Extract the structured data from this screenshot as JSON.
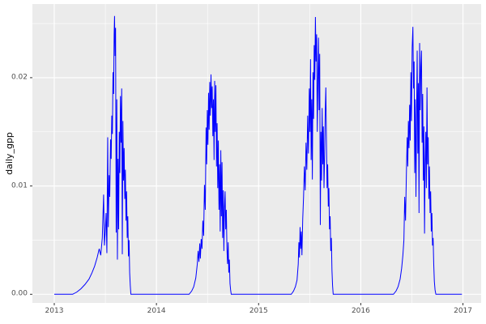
{
  "figure": {
    "y_axis_title": "daily_gpp"
  },
  "colors": {
    "line": "#0000FF",
    "panel_bg": "#EBEBEB",
    "grid_major": "#FFFFFF",
    "grid_minor": "#FFFFFF",
    "tick_text": "#4D4D4D",
    "axis_title": "#000000",
    "tick_mark": "#333333",
    "figure_bg": "#FFFFFF"
  },
  "chart_data": {
    "type": "line",
    "title": "",
    "xlabel": "",
    "ylabel": "daily_gpp",
    "legend": "none",
    "grid": "major+minor, white on grey panel (ggplot2 style)",
    "xlim": [
      2012.786,
      2017.178
    ],
    "ylim": [
      -0.0008,
      0.0268
    ],
    "x_ticks": [
      {
        "value": 2013,
        "label": "2013"
      },
      {
        "value": 2014,
        "label": "2014"
      },
      {
        "value": 2015,
        "label": "2015"
      },
      {
        "value": 2016,
        "label": "2016"
      },
      {
        "value": 2017,
        "label": "2017"
      }
    ],
    "y_ticks": [
      {
        "value": 0.0,
        "label": "0.00"
      },
      {
        "value": 0.01,
        "label": "0.01"
      },
      {
        "value": 0.02,
        "label": "0.02"
      }
    ],
    "x_minor_ticks": [
      2013.5,
      2014.5,
      2015.5,
      2016.5
    ],
    "y_minor_ticks": [
      0.005,
      0.015,
      0.025
    ],
    "series": [
      {
        "name": "daily_gpp",
        "color": "#0000FF",
        "points": [
          [
            2013.0,
            0
          ],
          [
            2013.18,
            0
          ],
          [
            2013.22,
            0.0002
          ],
          [
            2013.26,
            0.0005
          ],
          [
            2013.3,
            0.0009
          ],
          [
            2013.34,
            0.0014
          ],
          [
            2013.37,
            0.002
          ],
          [
            2013.395,
            0.0026
          ],
          [
            2013.42,
            0.0034
          ],
          [
            2013.44,
            0.0042
          ],
          [
            2013.455,
            0.0036
          ],
          [
            2013.47,
            0.0052
          ],
          [
            2013.483,
            0.0092
          ],
          [
            2013.491,
            0.0045
          ],
          [
            2013.499,
            0.0058
          ],
          [
            2013.507,
            0.0075
          ],
          [
            2013.515,
            0.0038
          ],
          [
            2013.523,
            0.0145
          ],
          [
            2013.529,
            0.0062
          ],
          [
            2013.537,
            0.011
          ],
          [
            2013.543,
            0.009
          ],
          [
            2013.551,
            0.0143
          ],
          [
            2013.557,
            0.0125
          ],
          [
            2013.563,
            0.0165
          ],
          [
            2013.569,
            0.0148
          ],
          [
            2013.575,
            0.0205
          ],
          [
            2013.581,
            0.0185
          ],
          [
            2013.586,
            0.024
          ],
          [
            2013.59,
            0.0257
          ],
          [
            2013.595,
            0.022
          ],
          [
            2013.6,
            0.0246
          ],
          [
            2013.606,
            0.0057
          ],
          [
            2013.612,
            0.018
          ],
          [
            2013.618,
            0.0032
          ],
          [
            2013.624,
            0.0125
          ],
          [
            2013.63,
            0.006
          ],
          [
            2013.636,
            0.015
          ],
          [
            2013.642,
            0.0112
          ],
          [
            2013.648,
            0.0183
          ],
          [
            2013.654,
            0.014
          ],
          [
            2013.66,
            0.019
          ],
          [
            2013.666,
            0.0037
          ],
          [
            2013.672,
            0.016
          ],
          [
            2013.678,
            0.0105
          ],
          [
            2013.684,
            0.0135
          ],
          [
            2013.69,
            0.0088
          ],
          [
            2013.696,
            0.0115
          ],
          [
            2013.702,
            0.0068
          ],
          [
            2013.708,
            0.0095
          ],
          [
            2013.714,
            0.0052
          ],
          [
            2013.72,
            0.0072
          ],
          [
            2013.726,
            0.0035
          ],
          [
            2013.732,
            0.005
          ],
          [
            2013.738,
            0.002
          ],
          [
            2013.744,
            0.0008
          ],
          [
            2013.75,
            0
          ],
          [
            2014.32,
            0
          ],
          [
            2014.345,
            0.0003
          ],
          [
            2014.365,
            0.0007
          ],
          [
            2014.385,
            0.0015
          ],
          [
            2014.4,
            0.0028
          ],
          [
            2014.408,
            0.004
          ],
          [
            2014.416,
            0.003
          ],
          [
            2014.424,
            0.0047
          ],
          [
            2014.43,
            0.0033
          ],
          [
            2014.438,
            0.0051
          ],
          [
            2014.446,
            0.0042
          ],
          [
            2014.454,
            0.0068
          ],
          [
            2014.462,
            0.0054
          ],
          [
            2014.47,
            0.0101
          ],
          [
            2014.478,
            0.0078
          ],
          [
            2014.486,
            0.0154
          ],
          [
            2014.492,
            0.012
          ],
          [
            2014.498,
            0.017
          ],
          [
            2014.504,
            0.0138
          ],
          [
            2014.51,
            0.0186
          ],
          [
            2014.516,
            0.0152
          ],
          [
            2014.522,
            0.0196
          ],
          [
            2014.528,
            0.0165
          ],
          [
            2014.534,
            0.0203
          ],
          [
            2014.54,
            0.0172
          ],
          [
            2014.546,
            0.0192
          ],
          [
            2014.552,
            0.0146
          ],
          [
            2014.558,
            0.018
          ],
          [
            2014.564,
            0.0124
          ],
          [
            2014.57,
            0.0197
          ],
          [
            2014.576,
            0.015
          ],
          [
            2014.582,
            0.0193
          ],
          [
            2014.588,
            0.0118
          ],
          [
            2014.594,
            0.0158
          ],
          [
            2014.6,
            0.0098
          ],
          [
            2014.606,
            0.0142
          ],
          [
            2014.612,
            0.0078
          ],
          [
            2014.618,
            0.012
          ],
          [
            2014.624,
            0.0058
          ],
          [
            2014.63,
            0.0133
          ],
          [
            2014.636,
            0.0072
          ],
          [
            2014.642,
            0.0122
          ],
          [
            2014.648,
            0.0052
          ],
          [
            2014.654,
            0.0096
          ],
          [
            2014.66,
            0.004
          ],
          [
            2014.666,
            0.008
          ],
          [
            2014.672,
            0.0095
          ],
          [
            2014.678,
            0.006
          ],
          [
            2014.684,
            0.0078
          ],
          [
            2014.69,
            0.0042
          ],
          [
            2014.696,
            0.0028
          ],
          [
            2014.702,
            0.0048
          ],
          [
            2014.708,
            0.002
          ],
          [
            2014.714,
            0.0032
          ],
          [
            2014.72,
            0.001
          ],
          [
            2014.726,
            0.0004
          ],
          [
            2014.732,
            0
          ],
          [
            2015.32,
            0
          ],
          [
            2015.342,
            0.0003
          ],
          [
            2015.36,
            0.0007
          ],
          [
            2015.376,
            0.0013
          ],
          [
            2015.388,
            0.0028
          ],
          [
            2015.394,
            0.0048
          ],
          [
            2015.4,
            0.0034
          ],
          [
            2015.406,
            0.0062
          ],
          [
            2015.412,
            0.0042
          ],
          [
            2015.418,
            0.0058
          ],
          [
            2015.424,
            0.0036
          ],
          [
            2015.432,
            0.007
          ],
          [
            2015.44,
            0.009
          ],
          [
            2015.448,
            0.0118
          ],
          [
            2015.456,
            0.0096
          ],
          [
            2015.464,
            0.014
          ],
          [
            2015.472,
            0.0115
          ],
          [
            2015.48,
            0.0165
          ],
          [
            2015.488,
            0.013
          ],
          [
            2015.496,
            0.019
          ],
          [
            2015.502,
            0.015
          ],
          [
            2015.508,
            0.0217
          ],
          [
            2015.514,
            0.0124
          ],
          [
            2015.52,
            0.018
          ],
          [
            2015.526,
            0.0106
          ],
          [
            2015.532,
            0.0205
          ],
          [
            2015.538,
            0.0162
          ],
          [
            2015.544,
            0.023
          ],
          [
            2015.55,
            0.0198
          ],
          [
            2015.556,
            0.0256
          ],
          [
            2015.562,
            0.0215
          ],
          [
            2015.568,
            0.024
          ],
          [
            2015.574,
            0.015
          ],
          [
            2015.58,
            0.0196
          ],
          [
            2015.586,
            0.0237
          ],
          [
            2015.592,
            0.017
          ],
          [
            2015.598,
            0.0222
          ],
          [
            2015.604,
            0.0064
          ],
          [
            2015.61,
            0.015
          ],
          [
            2015.616,
            0.0105
          ],
          [
            2015.622,
            0.0172
          ],
          [
            2015.628,
            0.012
          ],
          [
            2015.634,
            0.0155
          ],
          [
            2015.64,
            0.0098
          ],
          [
            2015.646,
            0.0128
          ],
          [
            2015.652,
            0.0168
          ],
          [
            2015.658,
            0.0191
          ],
          [
            2015.664,
            0.014
          ],
          [
            2015.67,
            0.0098
          ],
          [
            2015.676,
            0.012
          ],
          [
            2015.682,
            0.0081
          ],
          [
            2015.688,
            0.0098
          ],
          [
            2015.694,
            0.006
          ],
          [
            2015.7,
            0.0072
          ],
          [
            2015.706,
            0.004
          ],
          [
            2015.712,
            0.0052
          ],
          [
            2015.718,
            0.0022
          ],
          [
            2015.724,
            0.0008
          ],
          [
            2015.73,
            0
          ],
          [
            2016.32,
            0
          ],
          [
            2016.345,
            0.0003
          ],
          [
            2016.365,
            0.0007
          ],
          [
            2016.385,
            0.0014
          ],
          [
            2016.4,
            0.0024
          ],
          [
            2016.412,
            0.0036
          ],
          [
            2016.422,
            0.005
          ],
          [
            2016.43,
            0.009
          ],
          [
            2016.438,
            0.0068
          ],
          [
            2016.446,
            0.011
          ],
          [
            2016.454,
            0.0145
          ],
          [
            2016.46,
            0.0118
          ],
          [
            2016.466,
            0.016
          ],
          [
            2016.472,
            0.0135
          ],
          [
            2016.478,
            0.0175
          ],
          [
            2016.484,
            0.0142
          ],
          [
            2016.49,
            0.0205
          ],
          [
            2016.496,
            0.016
          ],
          [
            2016.503,
            0.0228
          ],
          [
            2016.51,
            0.0247
          ],
          [
            2016.516,
            0.019
          ],
          [
            2016.522,
            0.0215
          ],
          [
            2016.528,
            0.0112
          ],
          [
            2016.534,
            0.018
          ],
          [
            2016.54,
            0.009
          ],
          [
            2016.546,
            0.016
          ],
          [
            2016.552,
            0.0225
          ],
          [
            2016.558,
            0.013
          ],
          [
            2016.564,
            0.0195
          ],
          [
            2016.57,
            0.0075
          ],
          [
            2016.576,
            0.0232
          ],
          [
            2016.582,
            0.017
          ],
          [
            2016.588,
            0.021
          ],
          [
            2016.594,
            0.0225
          ],
          [
            2016.6,
            0.014
          ],
          [
            2016.606,
            0.0185
          ],
          [
            2016.612,
            0.0105
          ],
          [
            2016.618,
            0.0155
          ],
          [
            2016.624,
            0.0056
          ],
          [
            2016.63,
            0.012
          ],
          [
            2016.636,
            0.015
          ],
          [
            2016.642,
            0.0098
          ],
          [
            2016.648,
            0.0191
          ],
          [
            2016.654,
            0.012
          ],
          [
            2016.66,
            0.0145
          ],
          [
            2016.666,
            0.0088
          ],
          [
            2016.672,
            0.0118
          ],
          [
            2016.678,
            0.0075
          ],
          [
            2016.684,
            0.0095
          ],
          [
            2016.69,
            0.0058
          ],
          [
            2016.696,
            0.0075
          ],
          [
            2016.702,
            0.0045
          ],
          [
            2016.708,
            0.0052
          ],
          [
            2016.714,
            0.0028
          ],
          [
            2016.72,
            0.0012
          ],
          [
            2016.727,
            0.0004
          ],
          [
            2016.735,
            0
          ],
          [
            2016.99,
            0
          ]
        ]
      }
    ]
  }
}
